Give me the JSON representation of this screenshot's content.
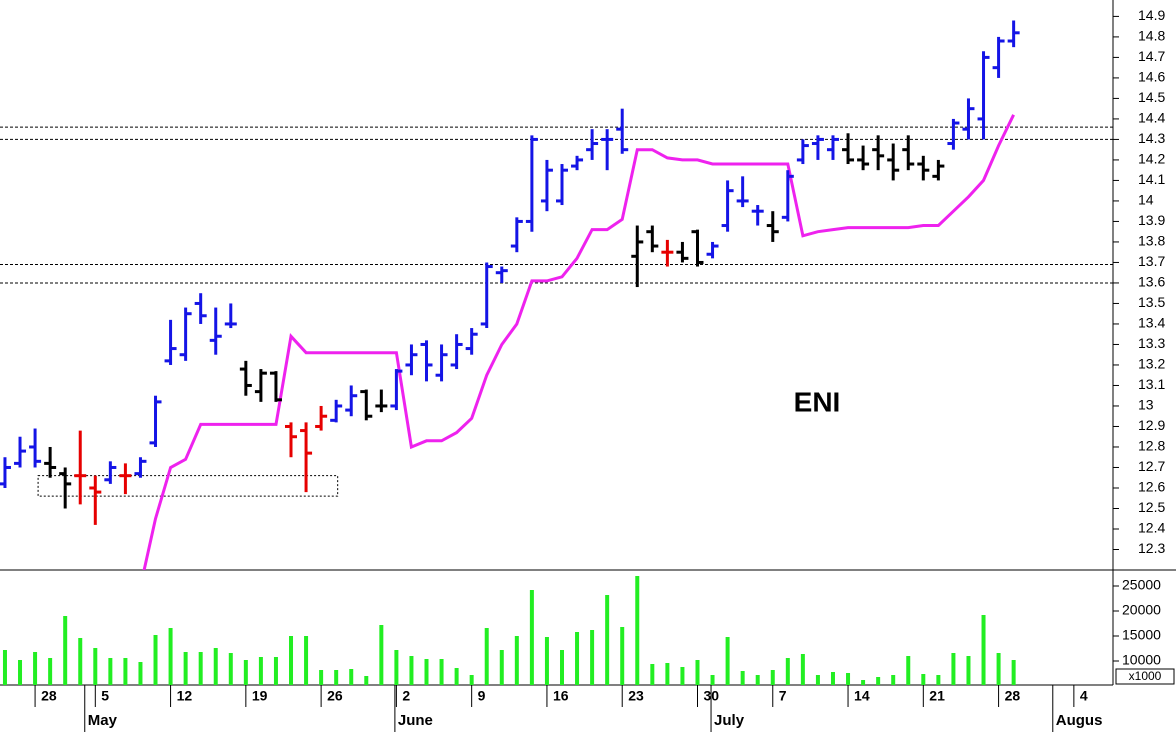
{
  "chart_data": {
    "type": "ohlc",
    "annotation": "ENI",
    "xlim": [
      -0.33,
      73.6
    ],
    "xticks": [
      {
        "value": 2,
        "label": "28"
      },
      {
        "value": 6,
        "label": "5"
      },
      {
        "value": 11,
        "label": "12"
      },
      {
        "value": 16,
        "label": "19"
      },
      {
        "value": 21,
        "label": "26"
      },
      {
        "value": 26,
        "label": "2"
      },
      {
        "value": 31,
        "label": "9"
      },
      {
        "value": 36,
        "label": "16"
      },
      {
        "value": 41,
        "label": "23"
      },
      {
        "value": 46,
        "label": "30"
      },
      {
        "value": 51,
        "label": "7"
      },
      {
        "value": 56,
        "label": "14"
      },
      {
        "value": 61,
        "label": "21"
      },
      {
        "value": 66,
        "label": "28"
      },
      {
        "value": 71,
        "label": "4"
      }
    ],
    "months": [
      {
        "value": 5.3,
        "label": "May"
      },
      {
        "value": 25.9,
        "label": "June"
      },
      {
        "value": 46.9,
        "label": "July"
      },
      {
        "value": 69.6,
        "label": "Augus"
      }
    ],
    "ylim": [
      12.2,
      14.98
    ],
    "yticks": [
      12.3,
      12.4,
      12.5,
      12.6,
      12.7,
      12.8,
      12.9,
      13.0,
      13.1,
      13.2,
      13.3,
      13.4,
      13.5,
      13.6,
      13.7,
      13.8,
      13.9,
      14.0,
      14.1,
      14.2,
      14.3,
      14.4,
      14.5,
      14.6,
      14.7,
      14.8,
      14.9
    ],
    "open": [
      12.62,
      12.72,
      12.8,
      12.72,
      12.67,
      12.66,
      12.6,
      12.64,
      12.66,
      12.67,
      12.82,
      13.22,
      13.25,
      13.5,
      13.32,
      13.4,
      13.18,
      13.07,
      13.16,
      12.9,
      12.88,
      12.9,
      12.93,
      12.98,
      13.07,
      13.0,
      13.0,
      13.2,
      13.3,
      13.15,
      13.2,
      13.28,
      13.4,
      13.65,
      13.78,
      13.9,
      14.0,
      14.0,
      14.17,
      14.25,
      14.3,
      14.35,
      13.73,
      13.85,
      13.75,
      13.75,
      13.85,
      13.74,
      13.88,
      14.0,
      13.95,
      13.88,
      13.92,
      14.2,
      14.28,
      14.25,
      14.25,
      14.2,
      14.25,
      14.2,
      14.25,
      14.18,
      14.12,
      14.28,
      14.35,
      14.4,
      14.65,
      14.78
    ],
    "high": [
      12.75,
      12.85,
      12.89,
      12.8,
      12.7,
      12.88,
      12.66,
      12.73,
      12.72,
      12.75,
      13.05,
      13.42,
      13.48,
      13.55,
      13.48,
      13.5,
      13.22,
      13.18,
      13.17,
      12.92,
      12.92,
      13.0,
      13.03,
      13.1,
      13.08,
      13.08,
      13.18,
      13.3,
      13.32,
      13.3,
      13.35,
      13.38,
      13.7,
      13.68,
      13.92,
      14.32,
      14.2,
      14.18,
      14.22,
      14.35,
      14.35,
      14.45,
      13.88,
      13.88,
      13.81,
      13.8,
      13.86,
      13.8,
      14.1,
      14.12,
      13.98,
      13.95,
      14.15,
      14.3,
      14.32,
      14.32,
      14.33,
      14.27,
      14.32,
      14.28,
      14.32,
      14.22,
      14.2,
      14.4,
      14.5,
      14.73,
      14.8,
      14.88
    ],
    "low": [
      12.6,
      12.7,
      12.7,
      12.65,
      12.5,
      12.52,
      12.42,
      12.62,
      12.57,
      12.65,
      12.8,
      13.2,
      13.22,
      13.4,
      13.25,
      13.38,
      13.05,
      13.02,
      13.02,
      12.75,
      12.58,
      12.88,
      12.92,
      12.95,
      12.93,
      12.97,
      12.98,
      13.15,
      13.12,
      13.12,
      13.18,
      13.25,
      13.38,
      13.6,
      13.75,
      13.85,
      13.95,
      13.98,
      14.15,
      14.2,
      14.15,
      14.23,
      13.58,
      13.75,
      13.68,
      13.7,
      13.68,
      13.72,
      13.85,
      13.97,
      13.88,
      13.8,
      13.9,
      14.18,
      14.2,
      14.2,
      14.18,
      14.15,
      14.15,
      14.1,
      14.15,
      14.1,
      14.1,
      14.25,
      14.3,
      14.3,
      14.6,
      14.75
    ],
    "close": [
      12.7,
      12.78,
      12.73,
      12.7,
      12.62,
      12.66,
      12.58,
      12.7,
      12.66,
      12.73,
      13.02,
      13.28,
      13.45,
      13.44,
      13.34,
      13.4,
      13.1,
      13.16,
      13.03,
      12.85,
      12.77,
      12.95,
      13.0,
      13.05,
      12.95,
      13.0,
      13.17,
      13.25,
      13.2,
      13.25,
      13.3,
      13.35,
      13.68,
      13.66,
      13.9,
      14.3,
      14.15,
      14.15,
      14.2,
      14.28,
      14.3,
      14.25,
      13.8,
      13.78,
      13.75,
      13.72,
      13.7,
      13.78,
      14.05,
      14.0,
      13.95,
      13.85,
      14.12,
      14.27,
      14.3,
      14.3,
      14.2,
      14.18,
      14.22,
      14.15,
      14.18,
      14.15,
      14.17,
      14.38,
      14.45,
      14.7,
      14.78,
      14.82
    ],
    "bar_colors": [
      "#1414e6",
      "#1414e6",
      "#1414e6",
      "#000000",
      "#000000",
      "#e60000",
      "#e60000",
      "#1414e6",
      "#e60000",
      "#1414e6",
      "#1414e6",
      "#1414e6",
      "#1414e6",
      "#1414e6",
      "#1414e6",
      "#1414e6",
      "#000000",
      "#000000",
      "#000000",
      "#e60000",
      "#e60000",
      "#e60000",
      "#1414e6",
      "#1414e6",
      "#000000",
      "#000000",
      "#1414e6",
      "#1414e6",
      "#1414e6",
      "#1414e6",
      "#1414e6",
      "#1414e6",
      "#1414e6",
      "#1414e6",
      "#1414e6",
      "#1414e6",
      "#1414e6",
      "#1414e6",
      "#1414e6",
      "#1414e6",
      "#1414e6",
      "#1414e6",
      "#000000",
      "#000000",
      "#e60000",
      "#000000",
      "#000000",
      "#1414e6",
      "#1414e6",
      "#1414e6",
      "#1414e6",
      "#000000",
      "#1414e6",
      "#1414e6",
      "#1414e6",
      "#1414e6",
      "#000000",
      "#000000",
      "#000000",
      "#000000",
      "#000000",
      "#000000",
      "#000000",
      "#1414e6",
      "#1414e6",
      "#1414e6",
      "#1414e6",
      "#1414e6"
    ],
    "line": {
      "color": "#ee22ee",
      "values": [
        null,
        null,
        null,
        null,
        null,
        null,
        null,
        null,
        null,
        12.12,
        12.45,
        12.7,
        12.74,
        12.91,
        12.91,
        12.91,
        12.91,
        12.91,
        12.91,
        13.34,
        13.26,
        13.26,
        13.26,
        13.26,
        13.26,
        13.26,
        13.26,
        12.8,
        12.83,
        12.83,
        12.87,
        12.94,
        13.15,
        13.3,
        13.4,
        13.61,
        13.61,
        13.63,
        13.72,
        13.86,
        13.86,
        13.91,
        14.25,
        14.25,
        14.21,
        14.2,
        14.2,
        14.18,
        14.18,
        14.18,
        14.18,
        14.18,
        14.18,
        13.83,
        13.85,
        13.86,
        13.87,
        13.87,
        13.87,
        13.87,
        13.87,
        13.88,
        13.88,
        13.95,
        14.02,
        14.1,
        14.27,
        14.42
      ]
    },
    "hlines": [
      14.36,
      14.3,
      13.69,
      13.6
    ],
    "box": {
      "x": [
        2.2,
        22.1
      ],
      "y": [
        12.56,
        12.66
      ]
    },
    "volume": {
      "color": "#22ee22",
      "unit": "x1000",
      "ylim": [
        5200,
        27800
      ],
      "yticks": [
        10000,
        15000,
        20000,
        25000
      ],
      "values": [
        12200,
        10200,
        11800,
        10600,
        19000,
        14600,
        12600,
        10600,
        10600,
        9800,
        15200,
        16600,
        11800,
        11800,
        12600,
        11600,
        10200,
        10800,
        10800,
        15000,
        15000,
        8200,
        8200,
        8400,
        7000,
        17200,
        12200,
        11000,
        10400,
        10400,
        8600,
        7200,
        16600,
        12200,
        15000,
        24200,
        14800,
        12200,
        15800,
        16200,
        23200,
        16800,
        27000,
        9400,
        9600,
        8800,
        10200,
        7200,
        14800,
        8000,
        7200,
        8200,
        10600,
        11400,
        7200,
        7800,
        7600,
        6200,
        6800,
        7200,
        11000,
        7400,
        7200,
        11600,
        11000,
        19200,
        11600,
        10200
      ]
    }
  }
}
